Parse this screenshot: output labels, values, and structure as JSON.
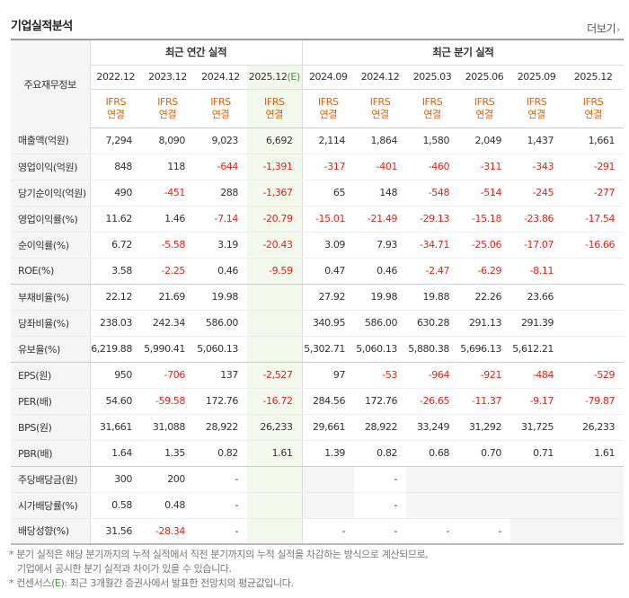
{
  "header": {
    "title": "기업실적분석",
    "more_label": "더보기",
    "more_icon": "chevron-right-icon"
  },
  "table": {
    "label_header": "주요재무정보",
    "annual_group": "최근 연간 실적",
    "quarter_group": "최근 분기 실적",
    "annual_periods": [
      "2022.12",
      "2023.12",
      "2024.12",
      "2025.12"
    ],
    "annual_estimate_suffix": "(E)",
    "quarter_periods": [
      "2024.09",
      "2024.12",
      "2025.03",
      "2025.06",
      "2025.09",
      "2025.12"
    ],
    "ifrs_top": "IFRS",
    "ifrs_bottom": "연결",
    "rows": [
      {
        "label": "매출액(억원)",
        "values": [
          "7,294",
          "8,090",
          "9,023",
          "6,692",
          "2,114",
          "1,864",
          "1,580",
          "2,049",
          "1,437",
          "1,661"
        ]
      },
      {
        "label": "영업이익(억원)",
        "values": [
          "848",
          "118",
          "-644",
          "-1,391",
          "-317",
          "-401",
          "-460",
          "-311",
          "-343",
          "-291"
        ]
      },
      {
        "label": "당기순이익(억원)",
        "values": [
          "490",
          "-451",
          "288",
          "-1,367",
          "65",
          "148",
          "-548",
          "-514",
          "-245",
          "-277"
        ]
      },
      {
        "label": "영업이익률(%)",
        "values": [
          "11.62",
          "1.46",
          "-7.14",
          "-20.79",
          "-15.01",
          "-21.49",
          "-29.13",
          "-15.18",
          "-23.86",
          "-17.54"
        ]
      },
      {
        "label": "순이익률(%)",
        "values": [
          "6.72",
          "-5.58",
          "3.19",
          "-20.43",
          "3.09",
          "7.93",
          "-34.71",
          "-25.06",
          "-17.07",
          "-16.66"
        ]
      },
      {
        "label": "ROE(%)",
        "values": [
          "3.58",
          "-2.25",
          "0.46",
          "-9.59",
          "0.47",
          "0.46",
          "-2.47",
          "-6.29",
          "-8.11",
          ""
        ]
      },
      {
        "label": "부채비율(%)",
        "values": [
          "22.12",
          "21.69",
          "19.98",
          "",
          "27.92",
          "19.98",
          "19.88",
          "22.26",
          "23.66",
          ""
        ]
      },
      {
        "label": "당좌비율(%)",
        "values": [
          "238.03",
          "242.34",
          "586.00",
          "",
          "340.95",
          "586.00",
          "630.28",
          "291.13",
          "291.39",
          ""
        ]
      },
      {
        "label": "유보율(%)",
        "values": [
          "6,219.88",
          "5,990.41",
          "5,060.13",
          "",
          "5,302.71",
          "5,060.13",
          "5,880.38",
          "5,696.13",
          "5,612.21",
          ""
        ]
      },
      {
        "label": "EPS(원)",
        "values": [
          "950",
          "-706",
          "137",
          "-2,527",
          "97",
          "-53",
          "-964",
          "-921",
          "-484",
          "-529"
        ]
      },
      {
        "label": "PER(배)",
        "values": [
          "54.60",
          "-59.58",
          "172.76",
          "-16.72",
          "284.56",
          "172.76",
          "-26.65",
          "-11.37",
          "-9.17",
          "-79.87"
        ]
      },
      {
        "label": "BPS(원)",
        "values": [
          "31,661",
          "31,088",
          "28,922",
          "26,233",
          "29,661",
          "28,922",
          "33,249",
          "31,292",
          "31,725",
          "26,233"
        ]
      },
      {
        "label": "PBR(배)",
        "values": [
          "1.64",
          "1.35",
          "0.82",
          "1.61",
          "1.39",
          "0.82",
          "0.68",
          "0.70",
          "0.71",
          "1.61"
        ]
      },
      {
        "label": "주당배당금(원)",
        "values": [
          "300",
          "200",
          "-",
          "",
          "",
          "-",
          "",
          "",
          "",
          ""
        ]
      },
      {
        "label": "시가배당률(%)",
        "values": [
          "0.58",
          "0.48",
          "-",
          "",
          "",
          "-",
          "",
          "",
          "",
          ""
        ]
      },
      {
        "label": "배당성향(%)",
        "values": [
          "31.56",
          "-28.34",
          "-",
          "",
          "-",
          "-",
          "-",
          "-",
          "",
          ""
        ]
      }
    ]
  },
  "notes": {
    "line1": "* 분기 실적은 해당 분기까지의 누적 실적에서 직전 분기까지의 누적 실적을 차감하는 방식으로 계산되므로,",
    "line2": "기업에서 공시한 분기 실적과 차이가 있을 수 있습니다.",
    "line3_prefix": "* 컨센서스(",
    "line3_e": "E",
    "line3_suffix": "): 최근 3개월간 증권사에서 발표한 전망치의 평균값입니다."
  },
  "colors": {
    "negative": "#e0261a",
    "ifrs": "#e66000",
    "estimate_bg": "#f3f8ec",
    "estimate_mark": "#3a9a3a"
  }
}
